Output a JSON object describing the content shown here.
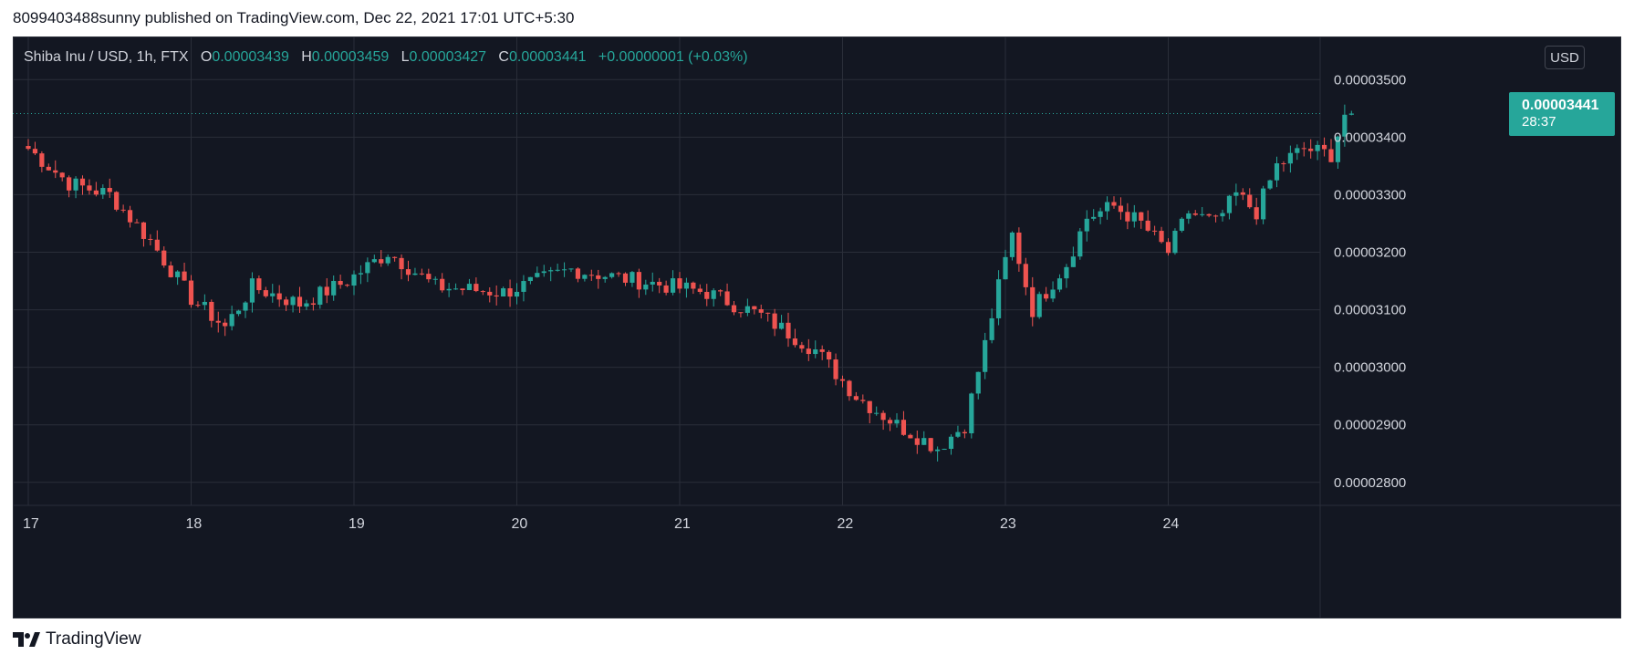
{
  "header": {
    "publisher": "8099403488sunny published on TradingView.com, Dec 22, 2021 17:01 UTC+5:30"
  },
  "legend": {
    "symbol": "Shiba Inu / USD, 1h, FTX",
    "o_label": "O",
    "o": "0.00003439",
    "h_label": "H",
    "h": "0.00003459",
    "l_label": "L",
    "l": "0.00003427",
    "c_label": "C",
    "c": "0.00003441",
    "change": "+0.00000001 (+0.03%)"
  },
  "currency": "USD",
  "last_price": {
    "value": "0.00003441",
    "countdown": "28:37"
  },
  "footer": {
    "brand": "TradingView"
  },
  "colors": {
    "up": "#26a69a",
    "down": "#ef5350",
    "background": "#131722",
    "grid": "#2a2e39",
    "text": "#d1d4dc"
  },
  "chart_data": {
    "type": "candlestick",
    "interval": "1h",
    "x_labels": [
      "17",
      "18",
      "19",
      "20",
      "21",
      "22",
      "23",
      "24"
    ],
    "y_ticks": [
      "0.00002800",
      "0.00002900",
      "0.00003000",
      "0.00003100",
      "0.00003200",
      "0.00003300",
      "0.00003400",
      "0.00003500"
    ],
    "ylim": [
      2.76e-05,
      3.575e-05
    ],
    "grid": true,
    "waypoints": [
      [
        0.0,
        3.38
      ],
      [
        6,
        3.32
      ],
      [
        12,
        3.3
      ],
      [
        18,
        3.22
      ],
      [
        24,
        3.12
      ],
      [
        29,
        3.07
      ],
      [
        33,
        3.14
      ],
      [
        40,
        3.11
      ],
      [
        47,
        3.15
      ],
      [
        53,
        3.2
      ],
      [
        60,
        3.14
      ],
      [
        70,
        3.13
      ],
      [
        80,
        3.17
      ],
      [
        90,
        3.15
      ],
      [
        100,
        3.13
      ],
      [
        108,
        3.09
      ],
      [
        116,
        3.03
      ],
      [
        122,
        2.95
      ],
      [
        128,
        2.9
      ],
      [
        134,
        2.86
      ],
      [
        138,
        2.9
      ],
      [
        141,
        3.04
      ],
      [
        143,
        3.14
      ],
      [
        145,
        3.23
      ],
      [
        148,
        3.1
      ],
      [
        153,
        3.18
      ],
      [
        156,
        3.26
      ],
      [
        160,
        3.28
      ],
      [
        164,
        3.25
      ],
      [
        168,
        3.2
      ],
      [
        171,
        3.27
      ],
      [
        175,
        3.25
      ],
      [
        178,
        3.3
      ],
      [
        181,
        3.27
      ],
      [
        184,
        3.35
      ],
      [
        188,
        3.38
      ],
      [
        192,
        3.37
      ],
      [
        194,
        3.44
      ],
      [
        195.5,
        3.441
      ]
    ],
    "last": 3.441e-05
  }
}
